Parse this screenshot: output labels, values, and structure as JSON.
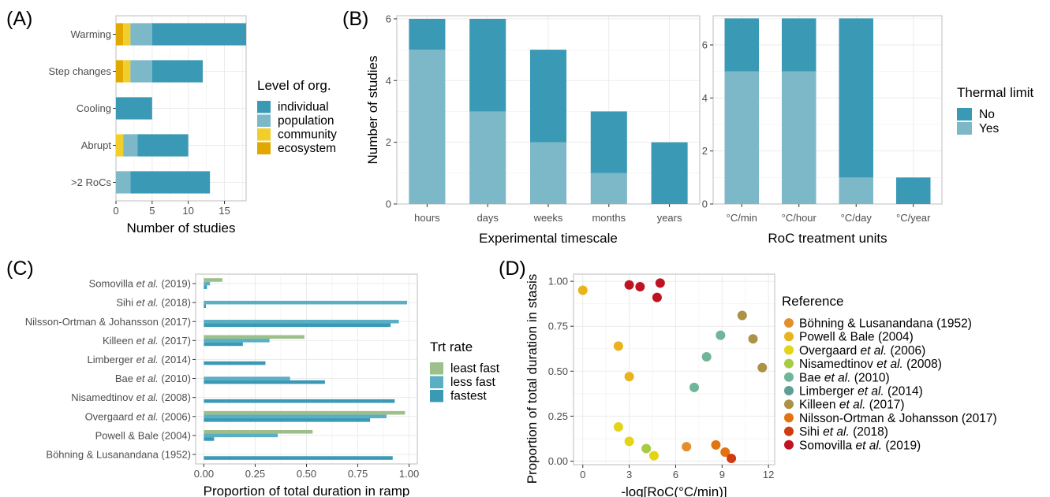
{
  "figure": {
    "panel_labels": [
      "(A)",
      "(B)",
      "(C)",
      "(D)"
    ]
  },
  "chart_data": [
    {
      "id": "A",
      "type": "bar",
      "orientation": "horizontal",
      "stacked": true,
      "categories": [
        "Warming",
        "Step changes",
        "Cooling",
        "Abrupt",
        ">2 RoCs"
      ],
      "series": [
        {
          "name": "ecosystem",
          "color": "#E1A800",
          "values": [
            1,
            1,
            0,
            0,
            0
          ]
        },
        {
          "name": "community",
          "color": "#F2CE2A",
          "values": [
            1,
            1,
            0,
            1,
            0
          ]
        },
        {
          "name": "population",
          "color": "#7CB8C8",
          "values": [
            3,
            3,
            0,
            2,
            2
          ]
        },
        {
          "name": "individual",
          "color": "#3A9AB5",
          "values": [
            13,
            7,
            5,
            7,
            11
          ]
        }
      ],
      "xlabel": "Number of studies",
      "xlim": [
        0,
        18
      ],
      "xticks": [
        0,
        5,
        10,
        15
      ],
      "legend_title": "Level of org.",
      "legend_order": [
        "individual",
        "population",
        "community",
        "ecosystem"
      ],
      "legend_position": "right",
      "grid": true
    },
    {
      "id": "B1",
      "type": "bar",
      "stacked": true,
      "categories": [
        "hours",
        "days",
        "weeks",
        "months",
        "years"
      ],
      "series": [
        {
          "name": "Yes",
          "color": "#7CB8C8",
          "values": [
            5,
            3,
            2,
            1,
            0
          ]
        },
        {
          "name": "No",
          "color": "#3A9AB5",
          "values": [
            1,
            3,
            3,
            2,
            2
          ]
        }
      ],
      "xlabel": "Experimental timescale",
      "ylabel": "Number of studies",
      "ylim": [
        0,
        6.1
      ],
      "yticks": [
        0,
        2,
        4,
        6
      ],
      "grid": true
    },
    {
      "id": "B2",
      "type": "bar",
      "stacked": true,
      "categories": [
        "°C/min",
        "°C/hour",
        "°C/day",
        "°C/year"
      ],
      "series": [
        {
          "name": "Yes",
          "color": "#7CB8C8",
          "values": [
            5,
            5,
            1,
            0
          ]
        },
        {
          "name": "No",
          "color": "#3A9AB5",
          "values": [
            2,
            2,
            6,
            1
          ]
        }
      ],
      "xlabel": "RoC treatment units",
      "ylim": [
        0,
        7.1
      ],
      "yticks": [
        0,
        2,
        4,
        6
      ],
      "legend_title": "Thermal limit",
      "legend_order": [
        "No",
        "Yes"
      ],
      "legend_position": "right",
      "grid": true
    },
    {
      "id": "C",
      "type": "bar",
      "orientation": "horizontal",
      "grouped": true,
      "categories": [
        {
          "parts": [
            "Somovilla ",
            "et al.",
            " (2019)"
          ]
        },
        {
          "parts": [
            "Sihi ",
            "et al.",
            " (2018)"
          ]
        },
        {
          "parts": [
            "Nilsson-Ortman & Johansson (2017)"
          ]
        },
        {
          "parts": [
            "Killeen ",
            "et al.",
            " (2017)"
          ]
        },
        {
          "parts": [
            "Limberger ",
            "et al.",
            " (2014)"
          ]
        },
        {
          "parts": [
            "Bae ",
            "et al.",
            " (2010)"
          ]
        },
        {
          "parts": [
            "Nisamedtinov ",
            "et al.",
            " (2008)"
          ]
        },
        {
          "parts": [
            "Overgaard ",
            "et al.",
            " (2006)"
          ]
        },
        {
          "parts": [
            "Powell & Bale (2004)"
          ]
        },
        {
          "parts": [
            "Böhning & Lusanandana (1952)"
          ]
        }
      ],
      "series": [
        {
          "name": "least fast",
          "color": "#9DC08B",
          "values": [
            0.09,
            null,
            null,
            0.49,
            null,
            null,
            null,
            0.98,
            0.53,
            null
          ]
        },
        {
          "name": "less fast",
          "color": "#5AAFC5",
          "values": [
            0.03,
            0.99,
            0.95,
            0.32,
            null,
            0.42,
            null,
            0.89,
            0.36,
            null
          ]
        },
        {
          "name": "fastest",
          "color": "#3A9AB5",
          "values": [
            0.015,
            0.01,
            0.91,
            0.19,
            0.3,
            0.59,
            0.93,
            0.81,
            0.05,
            0.92
          ]
        }
      ],
      "xlabel": "Proportion of total duration in ramp",
      "xlim": [
        -0.04,
        1.04
      ],
      "xticks": [
        0.0,
        0.25,
        0.5,
        0.75,
        1.0
      ],
      "xtick_labels": [
        "0.00",
        "0.25",
        "0.50",
        "0.75",
        "1.00"
      ],
      "legend_title": "Trt rate",
      "legend_position": "right",
      "grid": true
    },
    {
      "id": "D",
      "type": "scatter",
      "xlabel": "-log[RoC(°C/min)]",
      "ylabel": "Proportion of total duration in stasis",
      "xlim": [
        -0.6,
        12.4
      ],
      "ylim": [
        -0.02,
        1.04
      ],
      "xticks": [
        0,
        3,
        6,
        9,
        12
      ],
      "yticks": [
        0.0,
        0.25,
        0.5,
        0.75,
        1.0
      ],
      "ytick_labels": [
        "0.00",
        "0.25",
        "0.50",
        "0.75",
        "1.00"
      ],
      "legend_title": "Reference",
      "legend_position": "right",
      "grid": true,
      "series": [
        {
          "name": {
            "parts": [
              "Böhning & Lusanandana (1952)"
            ]
          },
          "color": "#E3902C",
          "points": [
            [
              6.7,
              0.08
            ]
          ]
        },
        {
          "name": {
            "parts": [
              "Powell & Bale (2004)"
            ]
          },
          "color": "#E8B31C",
          "points": [
            [
              0.0,
              0.95
            ],
            [
              2.3,
              0.64
            ],
            [
              3.0,
              0.47
            ]
          ]
        },
        {
          "name": {
            "parts": [
              "Overgaard ",
              "et al.",
              " (2006)"
            ]
          },
          "color": "#E4D418",
          "points": [
            [
              2.3,
              0.19
            ],
            [
              3.0,
              0.11
            ],
            [
              4.6,
              0.03
            ]
          ]
        },
        {
          "name": {
            "parts": [
              "Nisamedtinov ",
              "et al.",
              " (2008)"
            ]
          },
          "color": "#A8CB45",
          "points": [
            [
              4.1,
              0.07
            ]
          ]
        },
        {
          "name": {
            "parts": [
              "Bae ",
              "et al.",
              " (2010)"
            ]
          },
          "color": "#6FB59A",
          "points": [
            [
              7.2,
              0.41
            ],
            [
              8.0,
              0.58
            ],
            [
              8.9,
              0.7
            ]
          ]
        },
        {
          "name": {
            "parts": [
              "Limberger ",
              "et al.",
              " (2014)"
            ]
          },
          "color": "#5E9E94",
          "points": []
        },
        {
          "name": {
            "parts": [
              "Killeen ",
              "et al.",
              " (2017)"
            ]
          },
          "color": "#AC9247",
          "points": [
            [
              10.3,
              0.81
            ],
            [
              11.0,
              0.68
            ],
            [
              11.6,
              0.52
            ]
          ]
        },
        {
          "name": {
            "parts": [
              "Nilsson-Ortman & Johansson (2017)"
            ]
          },
          "color": "#E3730F",
          "points": [
            [
              8.6,
              0.09
            ],
            [
              9.2,
              0.05
            ]
          ]
        },
        {
          "name": {
            "parts": [
              "Sihi ",
              "et al.",
              " (2018)"
            ]
          },
          "color": "#CF3C12",
          "points": [
            [
              9.6,
              0.015
            ]
          ]
        },
        {
          "name": {
            "parts": [
              "Somovilla ",
              "et al.",
              " (2019)"
            ]
          },
          "color": "#BE1322",
          "points": [
            [
              3.0,
              0.98
            ],
            [
              3.7,
              0.97
            ],
            [
              4.8,
              0.91
            ],
            [
              5.0,
              0.99
            ]
          ]
        }
      ]
    }
  ]
}
